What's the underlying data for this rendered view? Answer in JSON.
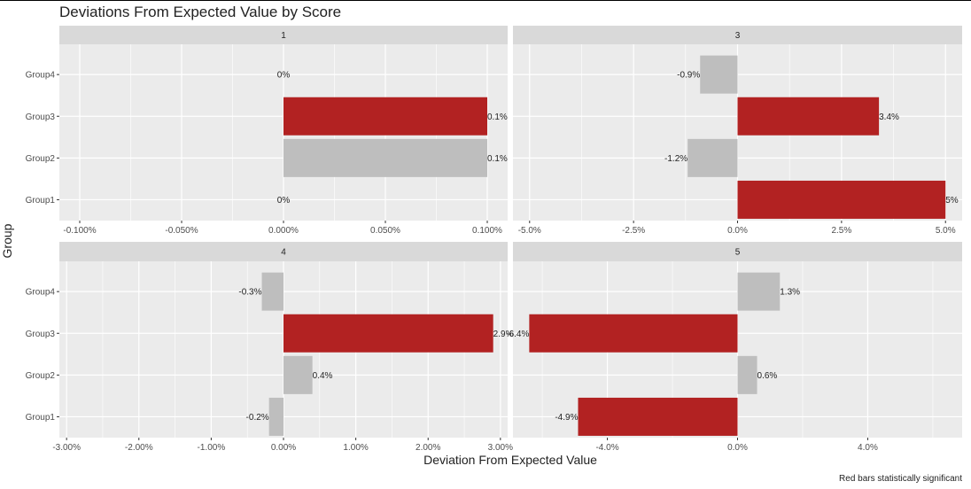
{
  "chart_data": {
    "type": "bar",
    "orientation": "horizontal",
    "title": "Deviations From Expected Value by Score",
    "xlabel": "Deviation From Expected Value",
    "ylabel": "Group",
    "caption": "Red bars statistically significant",
    "categories": [
      "Group1",
      "Group2",
      "Group3",
      "Group4"
    ],
    "colors": {
      "significant": "#b22222",
      "not_significant": "#bebebe"
    },
    "facets": [
      {
        "label": "1",
        "xlim": [
          -0.11,
          0.11
        ],
        "ticks": [
          -0.1,
          -0.05,
          0,
          0.05,
          0.1
        ],
        "tick_labels": [
          "-0.100%",
          "-0.050%",
          "0.000%",
          "0.050%",
          "0.100%"
        ],
        "bars": [
          {
            "group": "Group1",
            "value": 0,
            "label": "0%",
            "significant": false
          },
          {
            "group": "Group2",
            "value": 0.1,
            "label": "0.1%",
            "significant": false
          },
          {
            "group": "Group3",
            "value": 0.1,
            "label": "0.1%",
            "significant": true
          },
          {
            "group": "Group4",
            "value": 0,
            "label": "0%",
            "significant": false
          }
        ]
      },
      {
        "label": "3",
        "xlim": [
          -5.4,
          5.4
        ],
        "ticks": [
          -5,
          -2.5,
          0,
          2.5,
          5
        ],
        "tick_labels": [
          "-5.0%",
          "-2.5%",
          "0.0%",
          "2.5%",
          "5.0%"
        ],
        "bars": [
          {
            "group": "Group1",
            "value": 5,
            "label": "5%",
            "significant": true
          },
          {
            "group": "Group2",
            "value": -1.2,
            "label": "-1.2%",
            "significant": false
          },
          {
            "group": "Group3",
            "value": 3.4,
            "label": "3.4%",
            "significant": true
          },
          {
            "group": "Group4",
            "value": -0.9,
            "label": "-0.9%",
            "significant": false
          }
        ]
      },
      {
        "label": "4",
        "xlim": [
          -3.1,
          3.1
        ],
        "ticks": [
          -3,
          -2,
          -1,
          0,
          1,
          2,
          3
        ],
        "tick_labels": [
          "-3.00%",
          "-2.00%",
          "-1.00%",
          "0.00%",
          "1.00%",
          "2.00%",
          "3.00%"
        ],
        "bars": [
          {
            "group": "Group1",
            "value": -0.2,
            "label": "-0.2%",
            "significant": false
          },
          {
            "group": "Group2",
            "value": 0.4,
            "label": "0.4%",
            "significant": false
          },
          {
            "group": "Group3",
            "value": 2.9,
            "label": "2.9%",
            "significant": true
          },
          {
            "group": "Group4",
            "value": -0.3,
            "label": "-0.3%",
            "significant": false
          }
        ]
      },
      {
        "label": "5",
        "xlim": [
          -6.9,
          6.9
        ],
        "ticks": [
          -4,
          0,
          4
        ],
        "tick_labels": [
          "-4.0%",
          "0.0%",
          "4.0%"
        ],
        "bars": [
          {
            "group": "Group1",
            "value": -4.9,
            "label": "-4.9%",
            "significant": true
          },
          {
            "group": "Group2",
            "value": 0.6,
            "label": "0.6%",
            "significant": false
          },
          {
            "group": "Group3",
            "value": -6.4,
            "label": "-6.4%",
            "significant": true
          },
          {
            "group": "Group4",
            "value": 1.3,
            "label": "1.3%",
            "significant": false
          }
        ]
      }
    ]
  }
}
